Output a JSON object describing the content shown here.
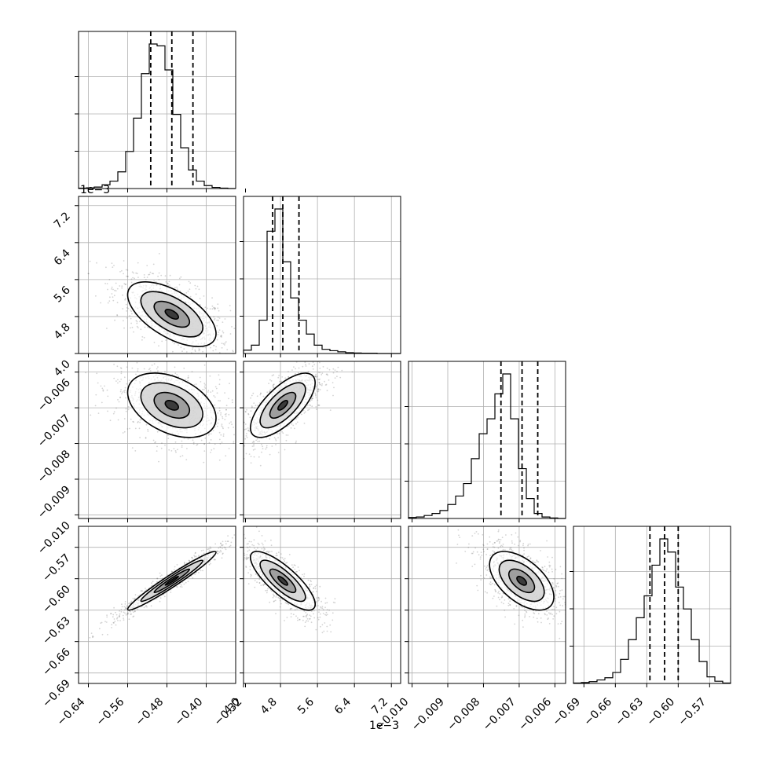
{
  "colors": {
    "hist_line": "#000000",
    "grid": "#b0b0b0",
    "scatter": "#555555",
    "contour_line": "#000000",
    "background": "#ffffff"
  },
  "chart_data": {
    "type": "corner",
    "parameters": 4,
    "grid": true,
    "offsets": {
      "param1_y": "1e−3",
      "param1_x": "1e−3"
    },
    "params": [
      {
        "range": [
          -0.66,
          -0.34
        ],
        "ticks": [
          -0.64,
          -0.56,
          -0.48,
          -0.4,
          -0.32
        ],
        "tick_labels": [
          "−0.64",
          "−0.56",
          "−0.48",
          "−0.40",
          "−0.32"
        ],
        "quantiles": [
          -0.513,
          -0.47,
          -0.427
        ]
      },
      {
        "range": [
          4.0,
          7.4
        ],
        "ticks": [
          4.0,
          4.8,
          5.6,
          6.4,
          7.2
        ],
        "tick_labels": [
          "4.0",
          "4.8",
          "5.6",
          "6.4",
          "7.2"
        ],
        "quantiles": [
          4.63,
          4.85,
          5.2
        ]
      },
      {
        "range": [
          -0.0101,
          -0.0057
        ],
        "ticks": [
          -0.01,
          -0.009,
          -0.008,
          -0.007,
          -0.006
        ],
        "tick_labels": [
          "−0.010",
          "−0.009",
          "−0.008",
          "−0.007",
          "−0.006"
        ],
        "quantiles": [
          -0.00751,
          -0.00692,
          -0.00648
        ]
      },
      {
        "range": [
          -0.7,
          -0.55
        ],
        "ticks": [
          -0.69,
          -0.66,
          -0.63,
          -0.6,
          -0.57
        ],
        "tick_labels": [
          "−0.69",
          "−0.66",
          "−0.63",
          "−0.60",
          "−0.57"
        ],
        "quantiles": [
          -0.627,
          -0.613,
          -0.6
        ]
      }
    ],
    "histograms": [
      [
        1,
        2,
        4,
        10,
        20,
        45,
        100,
        190,
        310,
        390,
        385,
        320,
        200,
        110,
        50,
        20,
        8,
        3,
        1,
        0
      ],
      [
        12,
        30,
        120,
        440,
        520,
        330,
        200,
        120,
        70,
        30,
        15,
        10,
        6,
        3,
        2,
        1,
        1,
        0,
        0,
        0
      ],
      [
        2,
        3,
        6,
        10,
        16,
        28,
        45,
        70,
        120,
        170,
        200,
        250,
        290,
        200,
        100,
        40,
        10,
        3,
        1,
        0
      ],
      [
        1,
        2,
        4,
        8,
        13,
        25,
        55,
        100,
        150,
        200,
        270,
        330,
        300,
        220,
        170,
        100,
        50,
        15,
        5,
        1
      ]
    ],
    "correlated_pairs": [
      {
        "row": 1,
        "col": 0,
        "center": [
          -0.47,
          4.85
        ],
        "sx": 0.045,
        "sy": 0.35,
        "rho": -0.6
      },
      {
        "row": 2,
        "col": 0,
        "center": [
          -0.47,
          -0.00693
        ],
        "sx": 0.045,
        "sy": 0.00045,
        "rho": -0.4
      },
      {
        "row": 2,
        "col": 1,
        "center": [
          4.85,
          -0.00693
        ],
        "sx": 0.35,
        "sy": 0.00045,
        "rho": 0.7
      },
      {
        "row": 3,
        "col": 0,
        "center": [
          -0.47,
          -0.602
        ],
        "sx": 0.045,
        "sy": 0.014,
        "rho": 0.97
      },
      {
        "row": 3,
        "col": 1,
        "center": [
          4.85,
          -0.602
        ],
        "sx": 0.35,
        "sy": 0.014,
        "rho": -0.8
      },
      {
        "row": 3,
        "col": 2,
        "center": [
          -0.00693,
          -0.602
        ],
        "sx": 0.00045,
        "sy": 0.014,
        "rho": -0.55
      }
    ]
  }
}
